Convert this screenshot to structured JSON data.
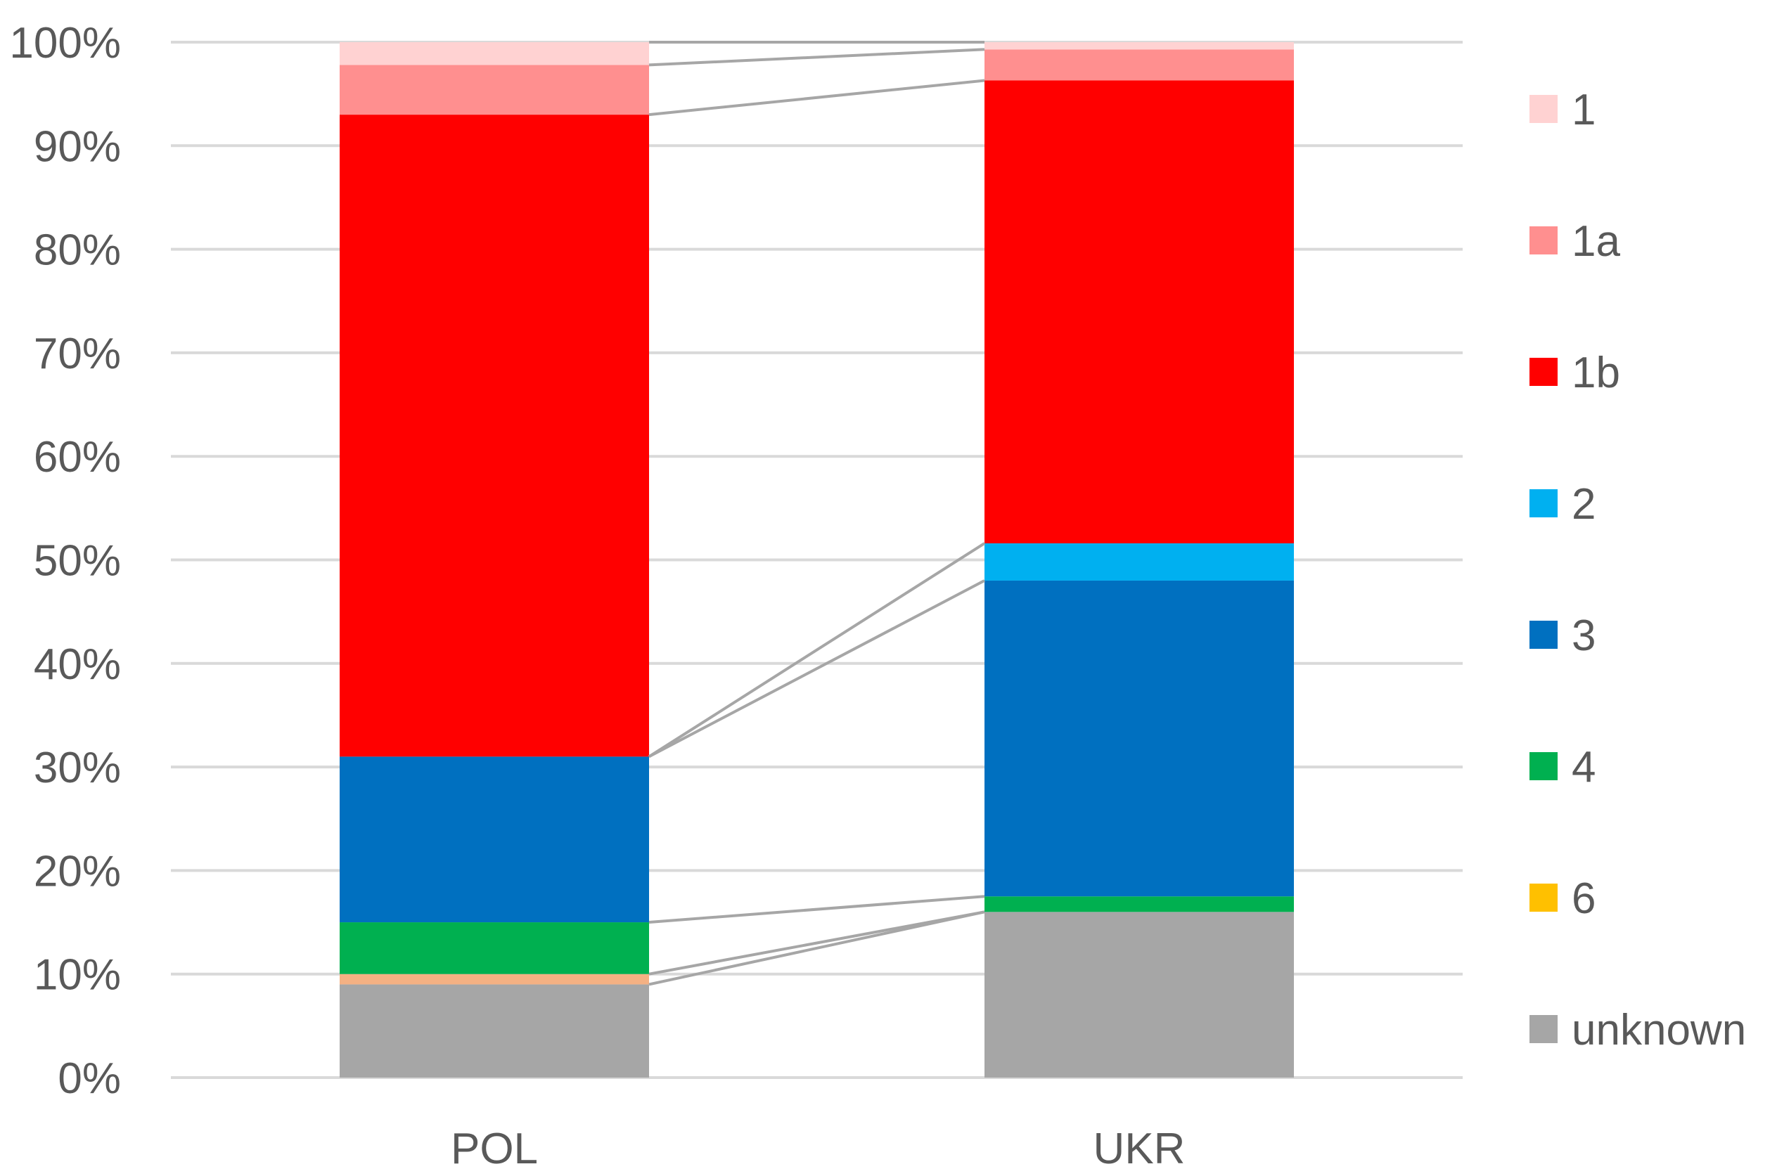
{
  "chart_data": {
    "type": "bar",
    "stacked": true,
    "percent_stacked": true,
    "title": "",
    "xlabel": "",
    "ylabel": "",
    "ylim": [
      0,
      100
    ],
    "y_ticks": [
      "0%",
      "10%",
      "20%",
      "30%",
      "40%",
      "50%",
      "60%",
      "70%",
      "80%",
      "90%",
      "100%"
    ],
    "categories": [
      "POL",
      "UKR"
    ],
    "grid": "horizontal",
    "legend_position": "right",
    "series_lines": true,
    "series": [
      {
        "name": "unknown",
        "color": "#a6a6a6",
        "values": [
          9.0,
          16.0
        ]
      },
      {
        "name": "6",
        "color": "#f4b183",
        "values": [
          1.0,
          0.0
        ]
      },
      {
        "name": "4",
        "color": "#00b050",
        "values": [
          5.0,
          1.5
        ]
      },
      {
        "name": "3",
        "color": "#0070c0",
        "values": [
          16.0,
          30.5
        ]
      },
      {
        "name": "2",
        "color": "#00b0f0",
        "values": [
          0.0,
          3.6
        ]
      },
      {
        "name": "1b",
        "color": "#ff0000",
        "values": [
          62.0,
          44.7
        ]
      },
      {
        "name": "1a",
        "color": "#ff8f8f",
        "values": [
          4.8,
          3.0
        ]
      },
      {
        "name": "1",
        "color": "#ffd2d2",
        "values": [
          2.2,
          0.7
        ]
      }
    ],
    "legend": [
      {
        "label": "1",
        "color": "#ffd2d2"
      },
      {
        "label": "1a",
        "color": "#ff8f8f"
      },
      {
        "label": "1b",
        "color": "#ff0000"
      },
      {
        "label": "2",
        "color": "#00b0f0"
      },
      {
        "label": "3",
        "color": "#0070c0"
      },
      {
        "label": "4",
        "color": "#00b050"
      },
      {
        "label": "6",
        "color": "#ffc000"
      },
      {
        "label": "unknown",
        "color": "#a6a6a6"
      }
    ]
  }
}
